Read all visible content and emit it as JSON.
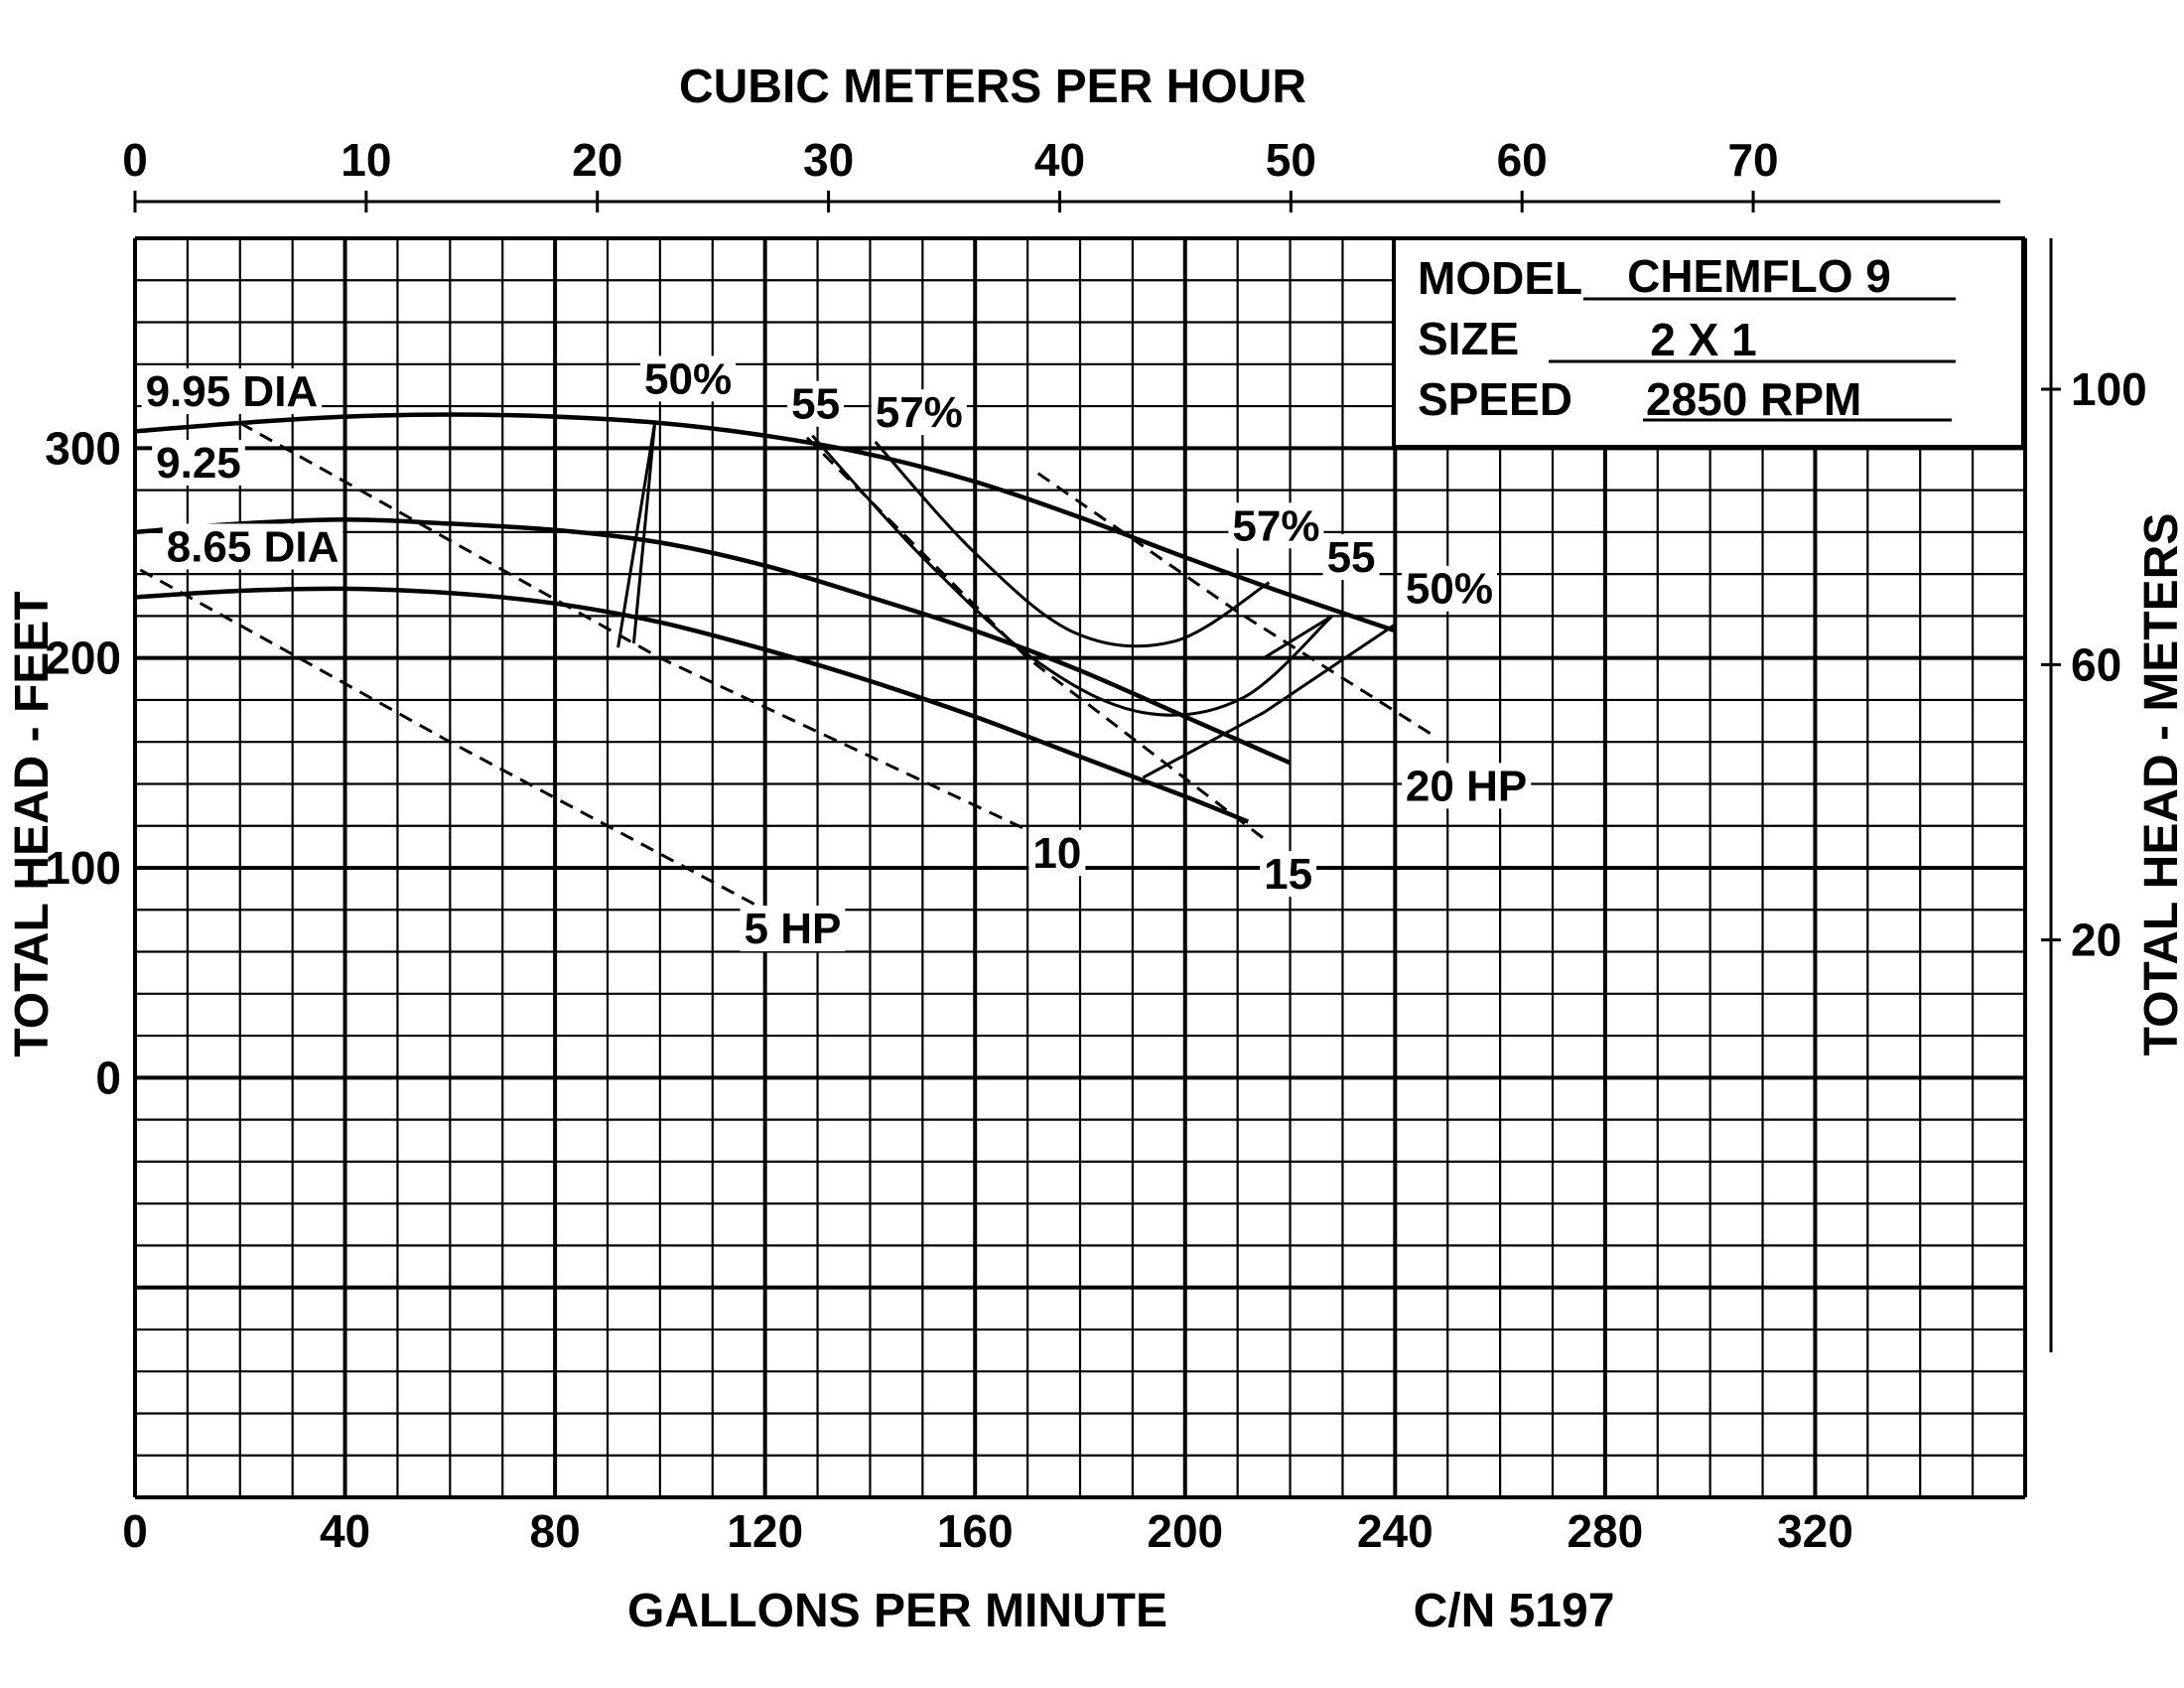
{
  "chart_data": {
    "type": "line",
    "top_axis": {
      "label": "CUBIC METERS PER HOUR",
      "ticks": [
        "0",
        "10",
        "20",
        "30",
        "40",
        "50",
        "60",
        "70"
      ],
      "range": [
        0,
        82
      ]
    },
    "bottom_axis": {
      "label": "GALLONS PER MINUTE",
      "ticks": [
        "0",
        "40",
        "80",
        "120",
        "160",
        "200",
        "240",
        "280",
        "320"
      ],
      "range": [
        0,
        360
      ]
    },
    "left_axis": {
      "label": "TOTAL HEAD - FEET",
      "ticks": [
        "300",
        "200",
        "100",
        "0"
      ],
      "range": [
        -200,
        400
      ]
    },
    "right_axis": {
      "label": "TOTAL HEAD - METERS",
      "ticks": [
        "100",
        "60",
        "20"
      ],
      "range": [
        0,
        120
      ]
    },
    "grid": true,
    "info": {
      "model_label": "MODEL",
      "model": "CHEMFLO 9",
      "size_label": "SIZE",
      "size": "2 X 1",
      "speed_label": "SPEED",
      "speed": "2850 RPM"
    },
    "catalog_number": "C/N 5197",
    "head_curves": [
      {
        "name": "9.95 DIA",
        "x": [
          0,
          20,
          40,
          60,
          80,
          100,
          120,
          140,
          160,
          180,
          200,
          220,
          240
        ],
        "y": [
          308,
          312,
          315,
          316,
          315,
          312,
          306,
          297,
          284,
          267,
          248,
          230,
          213
        ]
      },
      {
        "name": "9.25",
        "x": [
          0,
          20,
          40,
          60,
          80,
          100,
          120,
          140,
          160,
          180,
          200,
          220
        ],
        "y": [
          260,
          264,
          266,
          264,
          261,
          255,
          244,
          229,
          213,
          194,
          172,
          150
        ]
      },
      {
        "name": "8.65 DIA",
        "x": [
          0,
          20,
          40,
          60,
          80,
          100,
          120,
          140,
          160,
          180,
          200,
          212
        ],
        "y": [
          229,
          232,
          233,
          231,
          226,
          217,
          204,
          189,
          172,
          153,
          134,
          122
        ]
      }
    ],
    "efficiency_curves": [
      {
        "name": "50%",
        "x": [
          95,
          99,
          92
        ],
        "y": [
          207,
          312,
          205
        ]
      },
      {
        "name": "50%",
        "x": [
          192,
          215,
          240
        ],
        "y": [
          143,
          174,
          216
        ]
      },
      {
        "name": "55",
        "x": [
          129,
          150,
          172,
          192,
          211,
          228
        ],
        "y": [
          306,
          248,
          198,
          174,
          181,
          220
        ]
      },
      {
        "name": "55",
        "x": [
          228,
          215
        ],
        "y": [
          220,
          200
        ]
      },
      {
        "name": "57%",
        "x": [
          141,
          160,
          179,
          198,
          216
        ],
        "y": [
          303,
          250,
          212,
          208,
          236
        ]
      }
    ],
    "power_curves": [
      {
        "name": "5 HP",
        "x": [
          1,
          60,
          120
        ],
        "y": [
          242,
          160,
          80
        ]
      },
      {
        "name": "10",
        "x": [
          20,
          100,
          170
        ],
        "y": [
          312,
          200,
          118
        ]
      },
      {
        "name": "15",
        "x": [
          128,
          170,
          216
        ],
        "y": [
          305,
          200,
          112
        ]
      },
      {
        "name": "20 HP",
        "x": [
          172,
          210,
          248
        ],
        "y": [
          288,
          222,
          162
        ]
      }
    ],
    "labels": {
      "dia_995": "9.95 DIA",
      "dia_925": "9.25",
      "dia_865": "8.65 DIA",
      "eff50_left": "50%",
      "eff55_left": "55",
      "eff57_left": "57%",
      "eff57_right": "57%",
      "eff55_right": "55",
      "eff50_right": "50%",
      "hp5": "5 HP",
      "hp10": "10",
      "hp15": "15",
      "hp20": "20 HP"
    }
  }
}
